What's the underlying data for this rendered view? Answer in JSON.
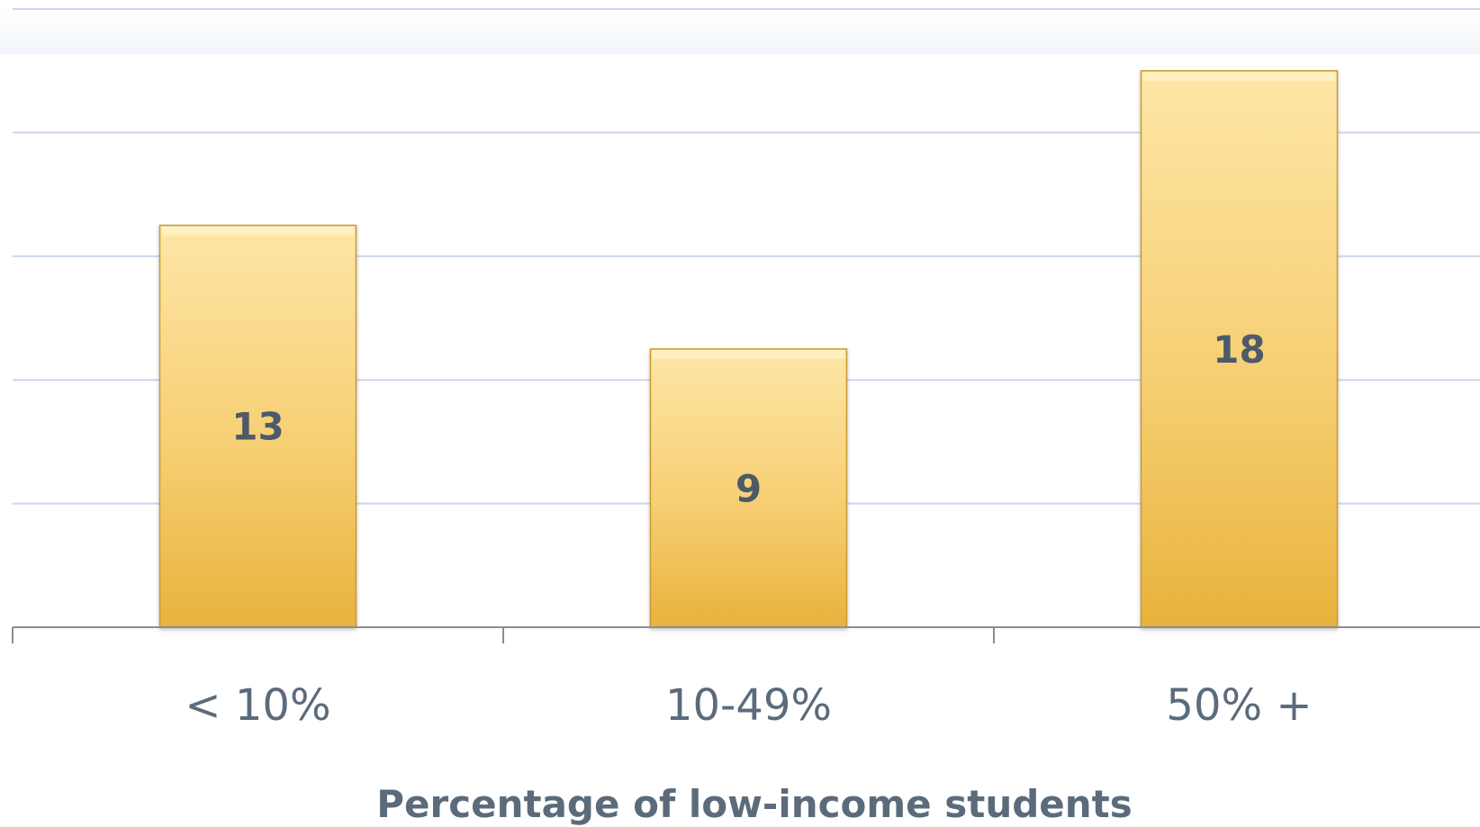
{
  "chart_data": {
    "type": "bar",
    "categories": [
      "< 10%",
      "10-49%",
      "50% +"
    ],
    "values": [
      13,
      9,
      18
    ],
    "data_labels": [
      "13",
      "9",
      "18"
    ],
    "title": "",
    "xlabel": "Percentage of low-income students",
    "ylabel": "",
    "ylim": [
      0,
      20
    ],
    "grid": true,
    "legend": "none",
    "colors": {
      "bar_top": "#fee6a6",
      "bar_bottom": "#e8b33c",
      "bar_edge": "#c79a36",
      "grid": "#c9d6ec",
      "axis": "#8d8d8d",
      "text": "#5b6b7b"
    }
  }
}
